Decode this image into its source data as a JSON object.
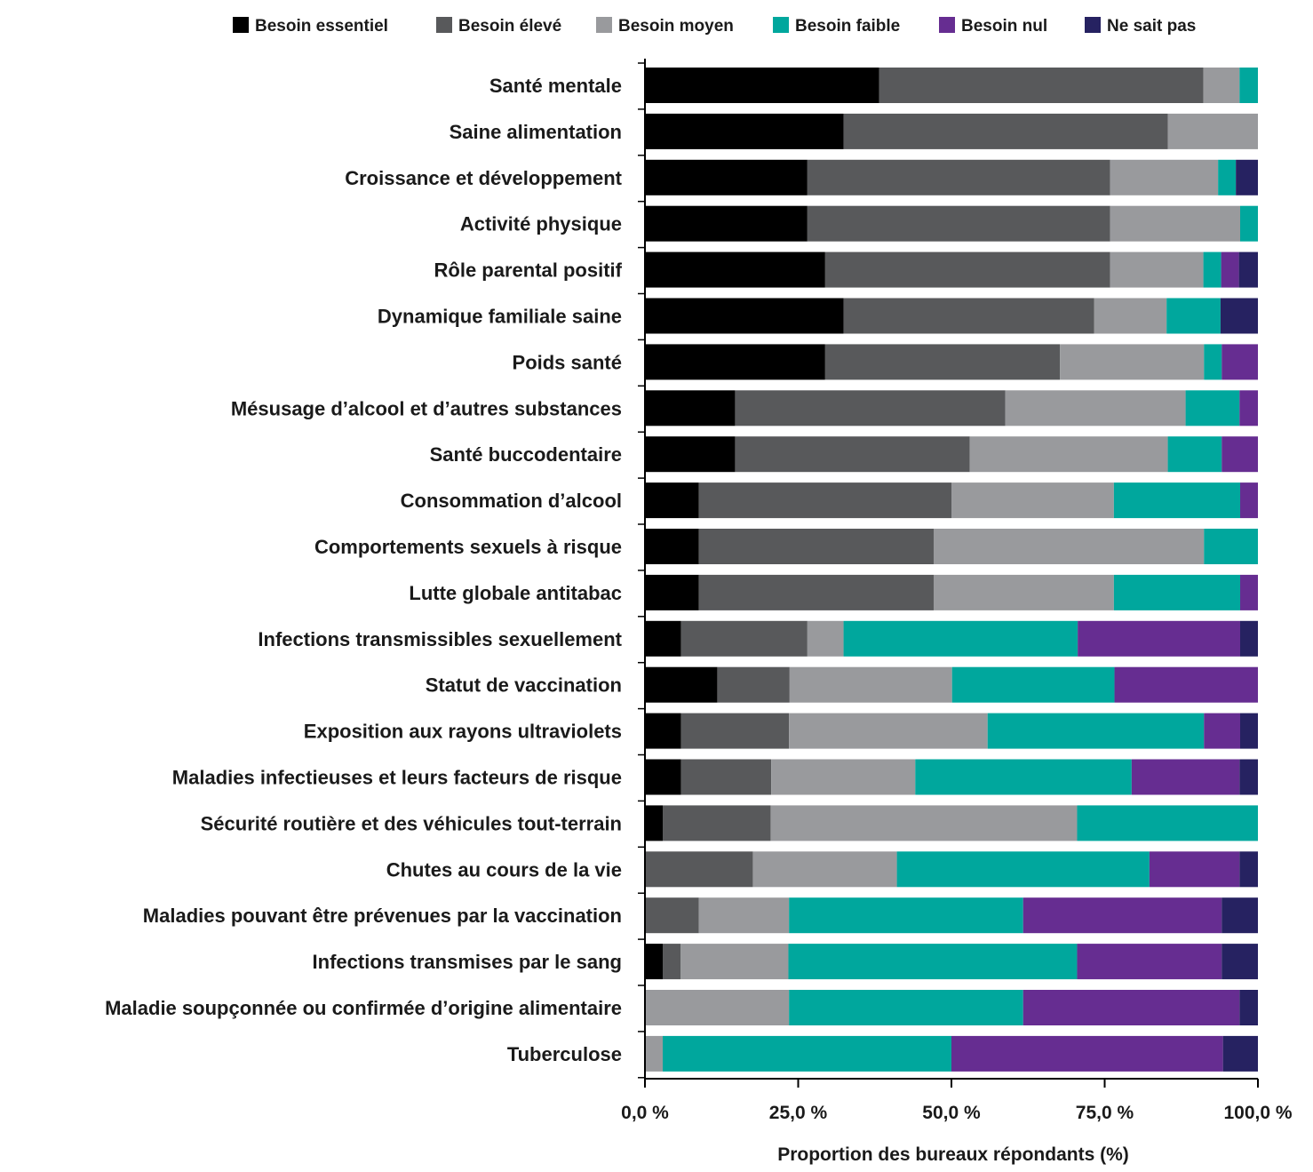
{
  "chart_data": {
    "type": "bar",
    "orientation": "horizontal",
    "stacked": true,
    "title": "",
    "xlabel": "Proportion des bureaux répondants (%)",
    "ylabel": "",
    "xlim": [
      0,
      100
    ],
    "x_ticks": [
      0,
      25,
      50,
      75,
      100
    ],
    "x_tick_labels": [
      "0,0 %",
      "25,0 %",
      "50,0 %",
      "75,0 %",
      "100,0 %"
    ],
    "legend_position": "top",
    "grid": false,
    "categories": [
      "Santé mentale",
      "Saine alimentation",
      "Croissance et développement",
      "Activité physique",
      "Rôle parental positif",
      "Dynamique familiale saine",
      "Poids santé",
      "Mésusage d’alcool et d’autres substances",
      "Santé buccodentaire",
      "Consommation d’alcool",
      "Comportements sexuels à risque",
      "Lutte globale antitabac",
      "Infections transmissibles sexuellement",
      "Statut de vaccination",
      "Exposition aux rayons ultraviolets",
      "Maladies infectieuses et leurs facteurs de risque",
      "Sécurité routière et des véhicules tout-terrain",
      "Chutes au cours de la vie",
      "Maladies pouvant être prévenues par la vaccination",
      "Infections transmises par le sang",
      "Maladie soupçonnée ou confirmée d’origine alimentaire",
      "Tuberculose"
    ],
    "series": [
      {
        "name": "Besoin essentiel",
        "color": "#000000",
        "values": [
          38.2,
          32.4,
          26.5,
          26.5,
          29.4,
          32.4,
          29.4,
          14.7,
          14.7,
          8.8,
          8.8,
          8.8,
          5.9,
          11.8,
          5.9,
          5.9,
          2.9,
          0,
          0,
          2.9,
          0,
          0
        ]
      },
      {
        "name": "Besoin élevé",
        "color": "#58595b",
        "values": [
          52.9,
          52.9,
          49.4,
          49.4,
          46.5,
          40.9,
          38.3,
          44.1,
          38.3,
          41.2,
          38.3,
          38.3,
          20.6,
          11.8,
          17.6,
          14.7,
          17.6,
          17.6,
          8.8,
          2.9,
          0,
          0
        ]
      },
      {
        "name": "Besoin moyen",
        "color": "#999a9d",
        "values": [
          5.9,
          14.7,
          17.6,
          21.2,
          15.2,
          11.8,
          23.5,
          29.4,
          32.3,
          26.5,
          44.1,
          29.4,
          5.9,
          26.5,
          32.4,
          23.5,
          50.0,
          23.5,
          14.7,
          17.6,
          23.5,
          2.9
        ]
      },
      {
        "name": "Besoin faible",
        "color": "#00a79d",
        "values": [
          3.0,
          0,
          2.9,
          2.9,
          2.9,
          8.8,
          2.9,
          8.8,
          8.8,
          20.6,
          8.8,
          20.6,
          38.2,
          26.5,
          35.3,
          35.3,
          29.5,
          41.2,
          38.2,
          47.1,
          38.2,
          47.1
        ]
      },
      {
        "name": "Besoin nul",
        "color": "#662d91",
        "values": [
          0,
          0,
          0,
          0,
          2.9,
          0,
          5.9,
          3.0,
          5.9,
          2.9,
          0,
          2.9,
          26.5,
          23.4,
          5.9,
          17.6,
          0,
          14.7,
          32.4,
          23.6,
          35.3,
          44.3
        ]
      },
      {
        "name": "Ne sait pas",
        "color": "#262261",
        "values": [
          0,
          0,
          3.6,
          0,
          3.1,
          6.1,
          0,
          0,
          0,
          0,
          0,
          0,
          2.9,
          0,
          2.9,
          3.0,
          0,
          3.0,
          5.9,
          5.9,
          3.0,
          5.7
        ]
      }
    ]
  }
}
